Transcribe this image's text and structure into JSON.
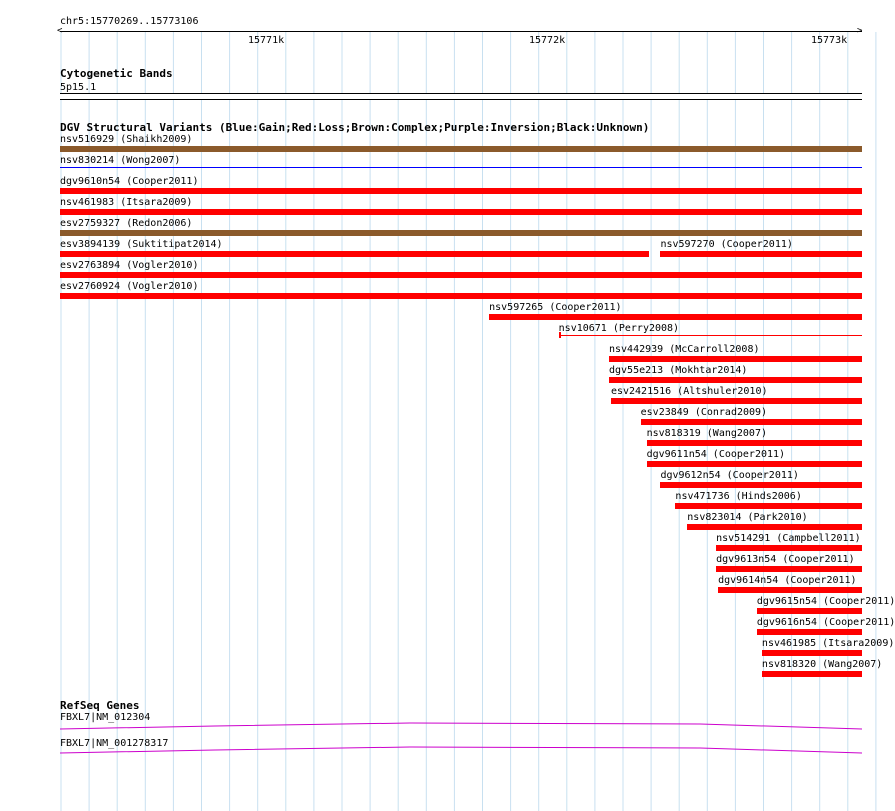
{
  "ruler": {
    "range_label": "chr5:15770269..15773106",
    "ticks": [
      "15771k",
      "15772k",
      "15773k"
    ]
  },
  "cytoband": {
    "title": "Cytogenetic Bands",
    "band": "5p15.1"
  },
  "dgv": {
    "title": "DGV Structural Variants (Blue:Gain;Red:Loss;Brown:Complex;Purple:Inversion;Black:Unknown)",
    "colors": {
      "loss": "#ff0000",
      "gain": "#0000ff",
      "complex": "#8b5a2b",
      "inversion": "#800080",
      "unknown": "#000000"
    },
    "features": [
      {
        "label": "nsv516929 (Shaikh2009)",
        "type": "complex",
        "start": 15770269,
        "end": 15773106
      },
      {
        "label": "nsv830214 (Wong2007)",
        "type": "gain",
        "start": 15770269,
        "end": 15773106
      },
      {
        "label": "dgv9610n54 (Cooper2011)",
        "type": "loss",
        "start": 15770269,
        "end": 15773106
      },
      {
        "label": "nsv461983 (Itsara2009)",
        "type": "loss",
        "start": 15770269,
        "end": 15773106
      },
      {
        "label": "esv2759327 (Redon2006)",
        "type": "complex",
        "start": 15770269,
        "end": 15773106
      },
      {
        "label": "esv3894139 (Suktitipat2014)",
        "type": "loss",
        "start": 15770269,
        "end": 15772351
      },
      {
        "label": "nsv597270 (Cooper2011)",
        "type": "loss",
        "start": 15772393,
        "end": 15773106
      },
      {
        "label": "esv2763894 (Vogler2010)",
        "type": "loss",
        "start": 15770269,
        "end": 15773106
      },
      {
        "label": "esv2760924 (Vogler2010)",
        "type": "loss",
        "start": 15770269,
        "end": 15773106
      },
      {
        "label": "nsv597265 (Cooper2011)",
        "type": "loss",
        "start": 15771787,
        "end": 15773106
      },
      {
        "label": "nsv10671 (Perry2008)",
        "type": "loss",
        "start": 15772033,
        "end": 15773106
      },
      {
        "label": "nsv442939 (McCarroll2008)",
        "type": "loss",
        "start": 15772211,
        "end": 15773106
      },
      {
        "label": "dgv55e213 (Mokhtar2014)",
        "type": "loss",
        "start": 15772211,
        "end": 15773106
      },
      {
        "label": "esv2421516 (Altshuler2010)",
        "type": "loss",
        "start": 15772218,
        "end": 15773106
      },
      {
        "label": "esv23849 (Conrad2009)",
        "type": "loss",
        "start": 15772323,
        "end": 15773106
      },
      {
        "label": "nsv818319 (Wang2007)",
        "type": "loss",
        "start": 15772344,
        "end": 15773106
      },
      {
        "label": "dgv9611n54 (Cooper2011)",
        "type": "loss",
        "start": 15772344,
        "end": 15773106
      },
      {
        "label": "dgv9612n54 (Cooper2011)",
        "type": "loss",
        "start": 15772393,
        "end": 15773106
      },
      {
        "label": "nsv471736 (Hinds2006)",
        "type": "loss",
        "start": 15772446,
        "end": 15773106
      },
      {
        "label": "nsv823014 (Park2010)",
        "type": "loss",
        "start": 15772488,
        "end": 15773106
      },
      {
        "label": "nsv514291 (Campbell2011)",
        "type": "loss",
        "start": 15772590,
        "end": 15773106
      },
      {
        "label": "dgv9613n54 (Cooper2011)",
        "type": "loss",
        "start": 15772590,
        "end": 15773106
      },
      {
        "label": "dgv9614n54 (Cooper2011)",
        "type": "loss",
        "start": 15772597,
        "end": 15773106
      },
      {
        "label": "dgv9615n54 (Cooper2011)",
        "type": "loss",
        "start": 15772734,
        "end": 15773106
      },
      {
        "label": "dgv9616n54 (Cooper2011)",
        "type": "loss",
        "start": 15772734,
        "end": 15773106
      },
      {
        "label": "nsv461985 (Itsara2009)",
        "type": "loss",
        "start": 15772752,
        "end": 15773106
      },
      {
        "label": "nsv818320 (Wang2007)",
        "type": "loss",
        "start": 15772752,
        "end": 15773106
      }
    ]
  },
  "refseq": {
    "title": "RefSeq Genes",
    "color": "#cc00cc",
    "genes": [
      {
        "label": "FBXL7|NM_012304"
      },
      {
        "label": "FBXL7|NM_001278317"
      }
    ]
  }
}
